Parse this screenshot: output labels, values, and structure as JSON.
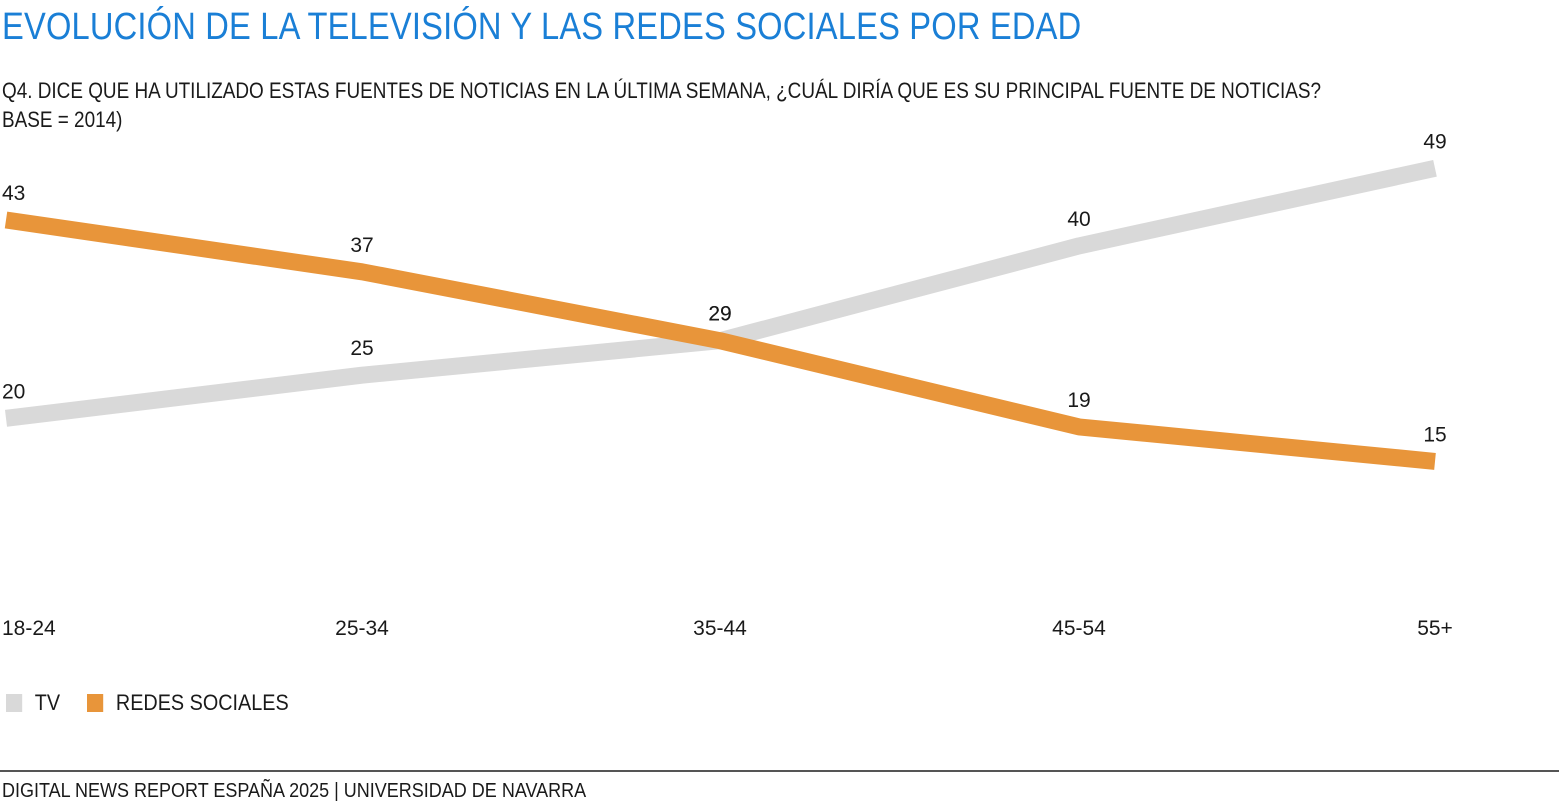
{
  "header": {
    "title": "EVOLUCIÓN DE LA TELEVISIÓN Y LAS REDES SOCIALES POR EDAD",
    "subtitle_line1": "Q4. DICE QUE HA UTILIZADO ESTAS FUENTES DE NOTICIAS EN LA ÚLTIMA SEMANA, ¿CUÁL DIRÍA QUE ES SU PRINCIPAL FUENTE DE NOTICIAS?",
    "subtitle_line2": "BASE = 2014)"
  },
  "colors": {
    "title": "#1a7fd6",
    "tv": "#d9d9d9",
    "redes": "#e8953a",
    "text": "#1a1a1a"
  },
  "chart_data": {
    "type": "line",
    "categories": [
      "18-24",
      "25-34",
      "35-44",
      "45-54",
      "55+"
    ],
    "series": [
      {
        "name": "TV",
        "values": [
          20,
          25,
          29,
          40,
          49
        ],
        "color": "#d9d9d9"
      },
      {
        "name": "REDES SOCIALES",
        "values": [
          43,
          37,
          29,
          19,
          15
        ],
        "color": "#e8953a"
      }
    ],
    "data_labels": true,
    "legend_position": "bottom-left",
    "grid": false,
    "xlabel": "",
    "ylabel": ""
  },
  "legend": {
    "items": [
      {
        "label": "TV",
        "color": "#d9d9d9"
      },
      {
        "label": "REDES SOCIALES",
        "color": "#e8953a"
      }
    ]
  },
  "footer": {
    "text": "DIGITAL NEWS REPORT ESPAÑA 2025 | UNIVERSIDAD DE NAVARRA"
  }
}
